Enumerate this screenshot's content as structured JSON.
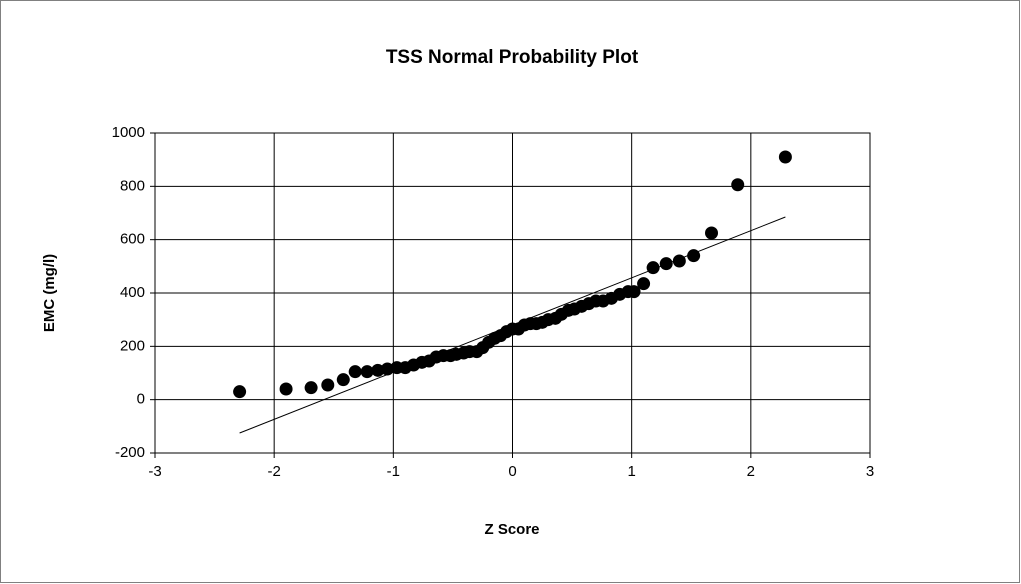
{
  "chart_data": {
    "type": "scatter",
    "title": "TSS Normal Probability Plot",
    "xlabel": "Z Score",
    "ylabel": "EMC (mg/l)",
    "xlim": [
      -3,
      3
    ],
    "xticks": [
      -3,
      -2,
      -1,
      0,
      1,
      2,
      3
    ],
    "ylim": [
      -200,
      1000
    ],
    "yticks": [
      -200,
      0,
      200,
      400,
      600,
      800,
      1000
    ],
    "grid": true,
    "series": [
      {
        "type": "scatter",
        "color": "#000000",
        "x": [
          -2.29,
          -1.9,
          -1.69,
          -1.55,
          -1.42,
          -1.32,
          -1.22,
          -1.13,
          -1.05,
          -0.97,
          -0.9,
          -0.83,
          -0.76,
          -0.7,
          -0.64,
          -0.58,
          -0.52,
          -0.47,
          -0.41,
          -0.36,
          -0.3,
          -0.25,
          -0.2,
          -0.15,
          -0.1,
          -0.05,
          0,
          0.05,
          0.1,
          0.15,
          0.2,
          0.25,
          0.3,
          0.36,
          0.41,
          0.47,
          0.52,
          0.58,
          0.64,
          0.7,
          0.76,
          0.83,
          0.9,
          0.97,
          1.02,
          1.1,
          1.18,
          1.29,
          1.4,
          1.52,
          1.67,
          1.89,
          2.29
        ],
        "values": [
          30,
          40,
          45,
          55,
          75,
          105,
          105,
          110,
          115,
          120,
          120,
          130,
          140,
          145,
          160,
          165,
          165,
          170,
          175,
          180,
          180,
          195,
          215,
          230,
          240,
          255,
          265,
          265,
          280,
          285,
          285,
          290,
          300,
          305,
          320,
          335,
          340,
          350,
          360,
          370,
          370,
          380,
          395,
          405,
          405,
          435,
          495,
          510,
          520,
          540,
          625,
          806,
          910
        ]
      },
      {
        "type": "line",
        "color": "#000000",
        "x": [
          -2.29,
          2.29
        ],
        "values": [
          -125,
          685
        ]
      }
    ]
  }
}
